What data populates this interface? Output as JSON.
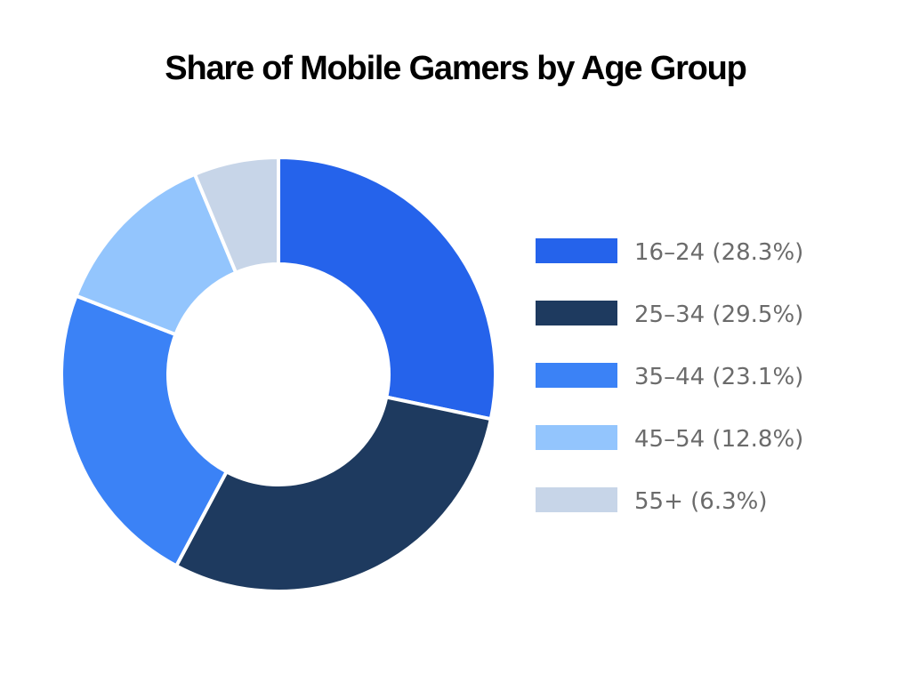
{
  "chart_data": {
    "type": "pie",
    "title": "Share of Mobile Gamers by Age Group",
    "donut": true,
    "legend_position": "right",
    "slices": [
      {
        "label": "16–24 (28.3%)",
        "value": 28.3,
        "color": "#2563eb"
      },
      {
        "label": "25–34 (29.5%)",
        "value": 29.5,
        "color": "#1e3a5f"
      },
      {
        "label": "35–44 (23.1%)",
        "value": 23.1,
        "color": "#3b82f6"
      },
      {
        "label": "45–54 (12.8%)",
        "value": 12.8,
        "color": "#93c5fd"
      },
      {
        "label": "55+ (6.3%)",
        "value": 6.3,
        "color": "#c7d5e8"
      }
    ]
  }
}
